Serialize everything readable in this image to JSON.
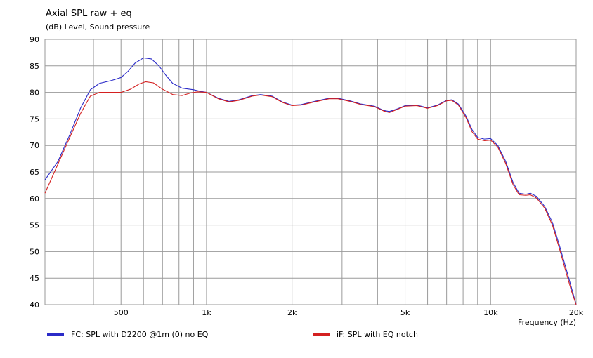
{
  "chart_data": {
    "type": "line",
    "title": "Axial SPL raw + eq",
    "ylabel": "(dB)  Level, Sound pressure",
    "xlabel": "Frequency  (Hz)",
    "x_scale": "log",
    "xlim": [
      270,
      20000
    ],
    "ylim": [
      40,
      90
    ],
    "y_ticks": [
      40,
      45,
      50,
      55,
      60,
      65,
      70,
      75,
      80,
      85,
      90
    ],
    "x_tick_labels": [
      {
        "value": 500,
        "label": "500"
      },
      {
        "value": 1000,
        "label": "1k"
      },
      {
        "value": 2000,
        "label": "2k"
      },
      {
        "value": 5000,
        "label": "5k"
      },
      {
        "value": 10000,
        "label": "10k"
      },
      {
        "value": 20000,
        "label": "20k"
      }
    ],
    "x_grid": [
      300,
      400,
      500,
      600,
      700,
      800,
      900,
      1000,
      2000,
      3000,
      4000,
      5000,
      6000,
      7000,
      8000,
      9000,
      10000,
      20000
    ],
    "grid": true,
    "legend_position": "bottom",
    "series": [
      {
        "name": "FC: SPL with D2200 @1m (0) no EQ",
        "color": "#2b2bc8",
        "points": [
          [
            270,
            63.5
          ],
          [
            300,
            67
          ],
          [
            330,
            72
          ],
          [
            360,
            77
          ],
          [
            390,
            80.5
          ],
          [
            420,
            81.7
          ],
          [
            460,
            82.2
          ],
          [
            500,
            82.8
          ],
          [
            530,
            84
          ],
          [
            560,
            85.5
          ],
          [
            600,
            86.5
          ],
          [
            640,
            86.3
          ],
          [
            680,
            85
          ],
          [
            720,
            83.2
          ],
          [
            760,
            81.7
          ],
          [
            820,
            80.8
          ],
          [
            900,
            80.5
          ],
          [
            950,
            80.2
          ],
          [
            1000,
            80
          ],
          [
            1100,
            78.9
          ],
          [
            1200,
            78.3
          ],
          [
            1300,
            78.6
          ],
          [
            1450,
            79.4
          ],
          [
            1550,
            79.6
          ],
          [
            1700,
            79.3
          ],
          [
            1850,
            78.2
          ],
          [
            2000,
            77.6
          ],
          [
            2150,
            77.7
          ],
          [
            2400,
            78.3
          ],
          [
            2700,
            78.9
          ],
          [
            2900,
            78.9
          ],
          [
            3200,
            78.4
          ],
          [
            3500,
            77.8
          ],
          [
            3900,
            77.4
          ],
          [
            4200,
            76.6
          ],
          [
            4400,
            76.4
          ],
          [
            4700,
            76.9
          ],
          [
            5000,
            77.5
          ],
          [
            5500,
            77.6
          ],
          [
            6000,
            77.1
          ],
          [
            6500,
            77.6
          ],
          [
            7000,
            78.5
          ],
          [
            7300,
            78.6
          ],
          [
            7700,
            77.8
          ],
          [
            8200,
            75.5
          ],
          [
            8600,
            73
          ],
          [
            9000,
            71.5
          ],
          [
            9500,
            71.2
          ],
          [
            10000,
            71.3
          ],
          [
            10600,
            70
          ],
          [
            11300,
            67
          ],
          [
            12000,
            63
          ],
          [
            12600,
            61
          ],
          [
            13300,
            60.8
          ],
          [
            13800,
            61
          ],
          [
            14500,
            60.4
          ],
          [
            15500,
            58.5
          ],
          [
            16500,
            55.5
          ],
          [
            17500,
            51
          ],
          [
            18500,
            46.5
          ],
          [
            19300,
            43
          ],
          [
            20000,
            40
          ]
        ]
      },
      {
        "name": "iF: SPL with EQ notch",
        "color": "#d42020",
        "points": [
          [
            270,
            61
          ],
          [
            300,
            66.5
          ],
          [
            330,
            71.5
          ],
          [
            360,
            76
          ],
          [
            390,
            79.3
          ],
          [
            420,
            80
          ],
          [
            460,
            80
          ],
          [
            500,
            80
          ],
          [
            540,
            80.6
          ],
          [
            580,
            81.6
          ],
          [
            610,
            82
          ],
          [
            650,
            81.8
          ],
          [
            700,
            80.6
          ],
          [
            760,
            79.6
          ],
          [
            820,
            79.4
          ],
          [
            880,
            79.9
          ],
          [
            930,
            80.1
          ],
          [
            1000,
            80
          ],
          [
            1100,
            78.8
          ],
          [
            1200,
            78.2
          ],
          [
            1300,
            78.5
          ],
          [
            1450,
            79.3
          ],
          [
            1550,
            79.5
          ],
          [
            1700,
            79.2
          ],
          [
            1850,
            78.1
          ],
          [
            2000,
            77.5
          ],
          [
            2150,
            77.6
          ],
          [
            2400,
            78.2
          ],
          [
            2700,
            78.8
          ],
          [
            2900,
            78.8
          ],
          [
            3200,
            78.3
          ],
          [
            3500,
            77.7
          ],
          [
            3900,
            77.3
          ],
          [
            4200,
            76.5
          ],
          [
            4400,
            76.2
          ],
          [
            4700,
            76.8
          ],
          [
            5000,
            77.4
          ],
          [
            5500,
            77.5
          ],
          [
            6000,
            77
          ],
          [
            6500,
            77.5
          ],
          [
            7000,
            78.4
          ],
          [
            7300,
            78.5
          ],
          [
            7700,
            77.6
          ],
          [
            8200,
            75.2
          ],
          [
            8600,
            72.6
          ],
          [
            9000,
            71.2
          ],
          [
            9500,
            70.9
          ],
          [
            10000,
            71
          ],
          [
            10600,
            69.7
          ],
          [
            11300,
            66.6
          ],
          [
            12000,
            62.6
          ],
          [
            12600,
            60.7
          ],
          [
            13300,
            60.6
          ],
          [
            13800,
            60.7
          ],
          [
            14500,
            60.1
          ],
          [
            15500,
            58.2
          ],
          [
            16500,
            55
          ],
          [
            17500,
            50.4
          ],
          [
            18500,
            45.8
          ],
          [
            19300,
            42.4
          ],
          [
            20000,
            40
          ]
        ]
      }
    ]
  }
}
